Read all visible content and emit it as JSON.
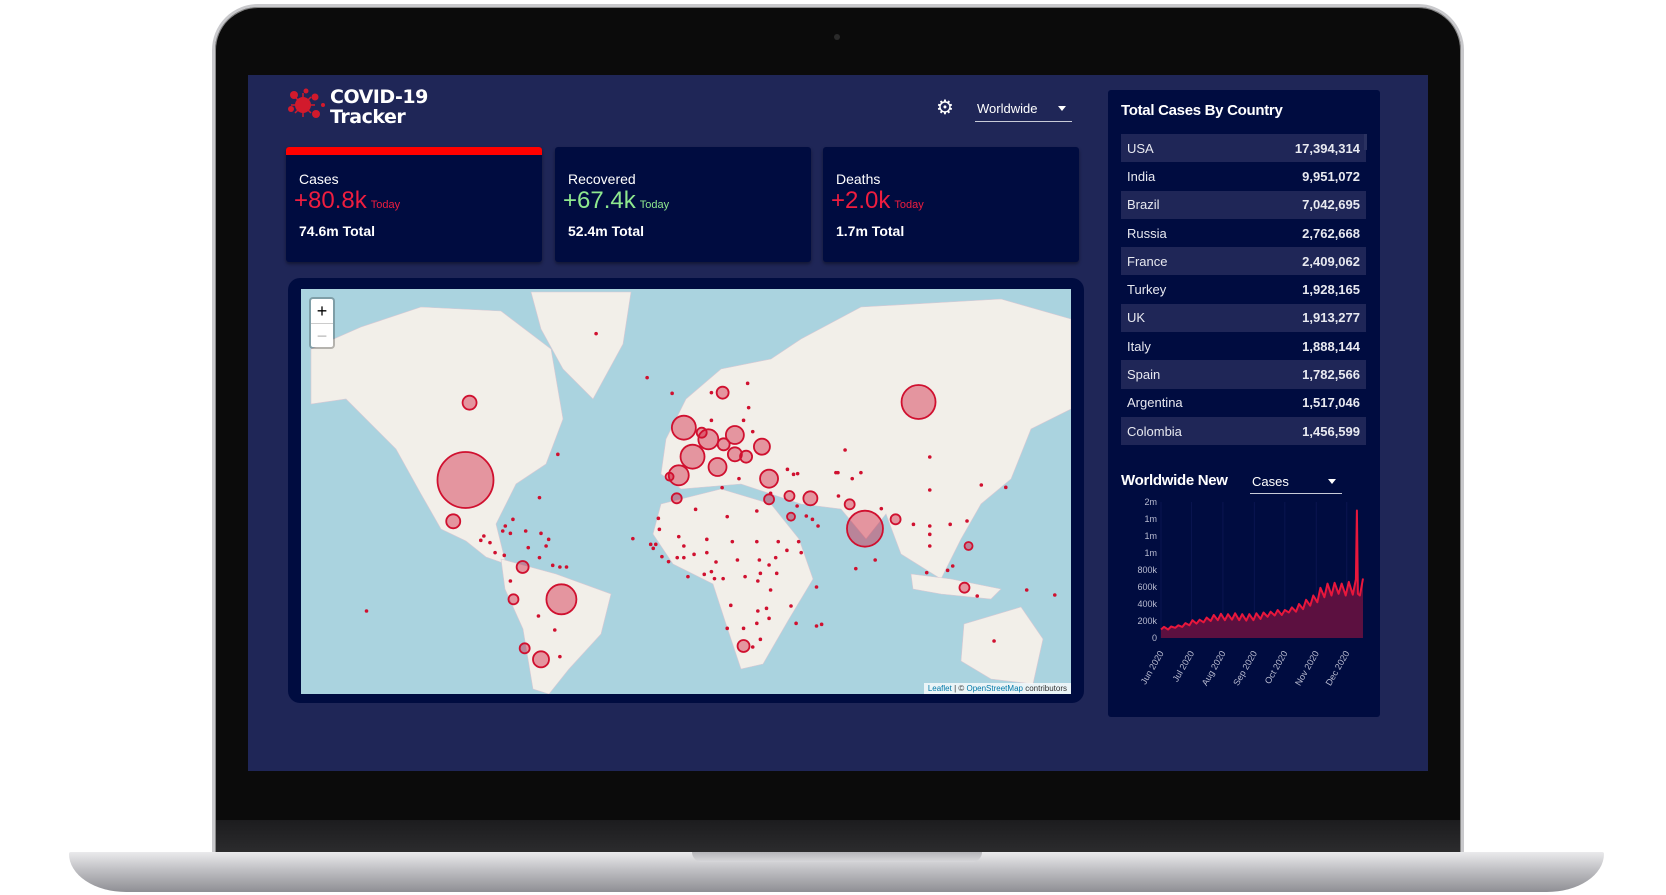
{
  "app": {
    "title_line1": "COVID-19",
    "title_line2": "Tracker"
  },
  "header": {
    "theme_icon": "gear-icon",
    "country_select": "Worldwide"
  },
  "stats": [
    {
      "label": "Cases",
      "today": "+80.8k",
      "today_label": "Today",
      "total": "74.6m Total",
      "color": "#ee1d3f",
      "selected": true
    },
    {
      "label": "Recovered",
      "today": "+67.4k",
      "today_label": "Today",
      "total": "52.4m Total",
      "color": "#8ee88e",
      "selected": false
    },
    {
      "label": "Deaths",
      "today": "+2.0k",
      "today_label": "Today",
      "total": "1.7m Total",
      "color": "#ee1d3f",
      "selected": false
    }
  ],
  "map": {
    "zoom_in": "+",
    "zoom_out": "−",
    "attribution_leaflet": "Leaflet",
    "attribution_sep": " | © ",
    "attribution_osm": "OpenStreetMap",
    "attribution_tail": " contributors",
    "marker_color": "#d0102f"
  },
  "table": {
    "title": "Total Cases By Country",
    "rows": [
      {
        "country": "USA",
        "cases": "17,394,314"
      },
      {
        "country": "India",
        "cases": "9,951,072"
      },
      {
        "country": "Brazil",
        "cases": "7,042,695"
      },
      {
        "country": "Russia",
        "cases": "2,762,668"
      },
      {
        "country": "France",
        "cases": "2,409,062"
      },
      {
        "country": "Turkey",
        "cases": "1,928,165"
      },
      {
        "country": "UK",
        "cases": "1,913,277"
      },
      {
        "country": "Italy",
        "cases": "1,888,144"
      },
      {
        "country": "Spain",
        "cases": "1,782,566"
      },
      {
        "country": "Argentina",
        "cases": "1,517,046"
      },
      {
        "country": "Colombia",
        "cases": "1,456,599"
      }
    ]
  },
  "graph": {
    "title": "Worldwide New",
    "type_select": "Cases"
  },
  "chart_data": {
    "type": "area",
    "xlabel": "",
    "ylabel": "",
    "ylim": [
      0,
      1600000
    ],
    "yticks": [
      0,
      200000,
      400000,
      600000,
      800000,
      1000000,
      1200000,
      1400000,
      1600000
    ],
    "ytick_labels": [
      "0",
      "200k",
      "400k",
      "600k",
      "800k",
      "1m",
      "1m",
      "1m",
      "2m"
    ],
    "xtick_labels": [
      "Jun 2020",
      "Jul 2020",
      "Aug 2020",
      "Sep 2020",
      "Oct 2020",
      "Nov 2020",
      "Dec 2020"
    ],
    "xticks": [
      "2020-06-01",
      "2020-07-01",
      "2020-08-01",
      "2020-09-01",
      "2020-10-01",
      "2020-11-01",
      "2020-12-01"
    ],
    "line_color": "#e8173c",
    "fill_color": "#5c1040",
    "x": [
      "2020-06-01",
      "2020-06-04",
      "2020-06-08",
      "2020-06-11",
      "2020-06-15",
      "2020-06-18",
      "2020-06-22",
      "2020-06-25",
      "2020-06-29",
      "2020-07-02",
      "2020-07-06",
      "2020-07-09",
      "2020-07-13",
      "2020-07-16",
      "2020-07-20",
      "2020-07-23",
      "2020-07-27",
      "2020-07-30",
      "2020-08-03",
      "2020-08-06",
      "2020-08-10",
      "2020-08-13",
      "2020-08-17",
      "2020-08-20",
      "2020-08-24",
      "2020-08-27",
      "2020-08-31",
      "2020-09-03",
      "2020-09-07",
      "2020-09-10",
      "2020-09-14",
      "2020-09-17",
      "2020-09-21",
      "2020-09-24",
      "2020-09-28",
      "2020-10-01",
      "2020-10-05",
      "2020-10-08",
      "2020-10-12",
      "2020-10-15",
      "2020-10-19",
      "2020-10-22",
      "2020-10-26",
      "2020-10-29",
      "2020-11-02",
      "2020-11-05",
      "2020-11-09",
      "2020-11-12",
      "2020-11-16",
      "2020-11-19",
      "2020-11-23",
      "2020-11-26",
      "2020-11-30",
      "2020-12-03",
      "2020-12-07",
      "2020-12-10",
      "2020-12-11",
      "2020-12-12",
      "2020-12-14",
      "2020-12-17"
    ],
    "values": [
      100000,
      130000,
      100000,
      135000,
      120000,
      150000,
      130000,
      175000,
      150000,
      210000,
      170000,
      215000,
      185000,
      240000,
      200000,
      270000,
      210000,
      285000,
      210000,
      280000,
      215000,
      290000,
      210000,
      280000,
      205000,
      280000,
      210000,
      290000,
      225000,
      300000,
      250000,
      310000,
      265000,
      330000,
      270000,
      330000,
      300000,
      360000,
      310000,
      400000,
      340000,
      450000,
      380000,
      500000,
      420000,
      590000,
      480000,
      640000,
      500000,
      650000,
      520000,
      640000,
      500000,
      660000,
      510000,
      690000,
      1500000,
      520000,
      500000,
      700000
    ]
  }
}
